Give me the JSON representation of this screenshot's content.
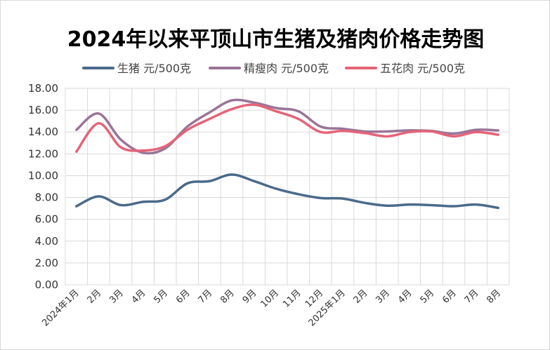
{
  "chart_data": {
    "type": "line",
    "title": "2024年以来平顶山市生猪及猪肉价格走势图",
    "xlabel": "",
    "ylabel": "",
    "categories": [
      "2024年1月",
      "2月",
      "3月",
      "4月",
      "5月",
      "6月",
      "7月",
      "8月",
      "9月",
      "10月",
      "11月",
      "12月",
      "2025年1月",
      "2月",
      "3月",
      "4月",
      "5月",
      "6月",
      "7月",
      "8月"
    ],
    "ylim": [
      0,
      18
    ],
    "yticks": [
      "0.00",
      "2.00",
      "4.00",
      "6.00",
      "8.00",
      "10.00",
      "12.00",
      "14.00",
      "16.00",
      "18.00"
    ],
    "grid": true,
    "legend_position": "top",
    "series": [
      {
        "name": "生猪 元/500克",
        "color": "#4a6a8a",
        "values": [
          7.2,
          8.1,
          7.3,
          7.6,
          7.8,
          9.3,
          9.5,
          10.1,
          9.5,
          8.8,
          8.3,
          7.95,
          7.9,
          7.5,
          7.25,
          7.35,
          7.3,
          7.2,
          7.35,
          7.05
        ]
      },
      {
        "name": "精瘦肉 元/500克",
        "color": "#9a7498",
        "values": [
          14.2,
          15.7,
          13.3,
          12.1,
          12.5,
          14.5,
          15.8,
          16.9,
          16.7,
          16.2,
          15.9,
          14.5,
          14.3,
          14.05,
          14.05,
          14.15,
          14.1,
          13.85,
          14.2,
          14.15
        ]
      },
      {
        "name": "五花肉 元/500克",
        "color": "#e56478",
        "values": [
          12.2,
          14.8,
          12.6,
          12.3,
          12.7,
          14.2,
          15.2,
          16.1,
          16.5,
          15.9,
          15.2,
          14.0,
          14.1,
          13.9,
          13.6,
          14.0,
          14.05,
          13.6,
          14.0,
          13.75
        ]
      }
    ]
  }
}
